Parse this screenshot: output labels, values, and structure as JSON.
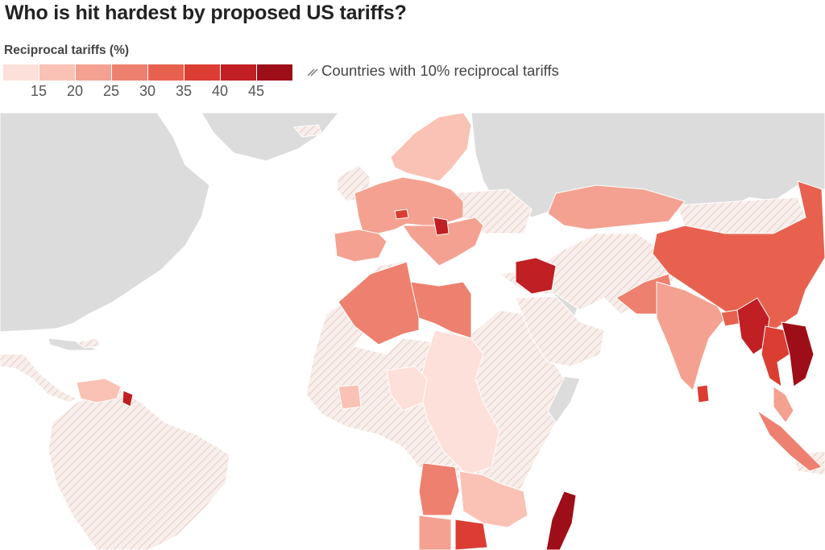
{
  "title": "Who is hit hardest by proposed US tariffs?",
  "legend": {
    "title": "Reciprocal tariffs (%)",
    "colors": [
      "#fde0d9",
      "#f9c2b4",
      "#f4a191",
      "#ee806f",
      "#e8614f",
      "#db3d33",
      "#c01f24",
      "#9e0e18"
    ],
    "ticks": [
      "15",
      "20",
      "25",
      "30",
      "35",
      "40",
      "45"
    ],
    "hatch_label": "Countries with 10% reciprocal tariffs",
    "hatch_icon": "diagonal-hatch-icon"
  },
  "colors": {
    "ocean": "#ffffff",
    "no_data": "#dcdcdc",
    "hatch_base": "#f8efec",
    "hatch_line": "#e8cfc6"
  }
}
